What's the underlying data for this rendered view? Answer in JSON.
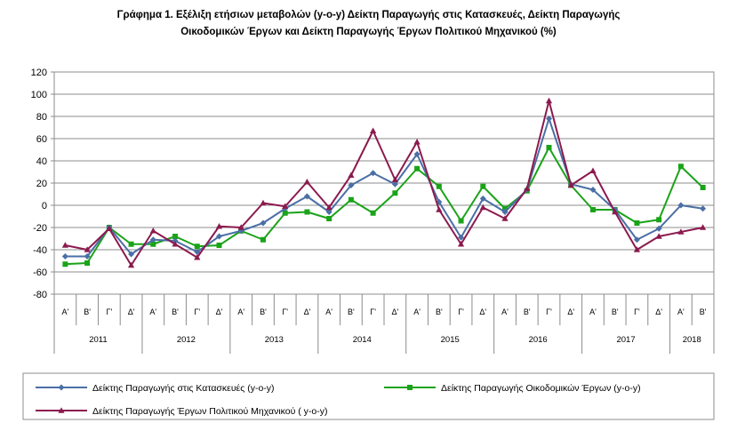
{
  "chart_data": {
    "type": "line",
    "title": "Γράφημα 1. Εξέλιξη ετήσιων μεταβολών (y-o-y) Δείκτη Παραγωγής στις Κατασκευές, Δείκτη Παραγωγής",
    "subtitle": "Οικοδομικών Έργων και  Δείκτη Παραγωγής Έργων Πολιτικού Μηχανικού (%)",
    "xlabel": "",
    "ylabel": "",
    "ylim": [
      -80,
      120
    ],
    "yticks": [
      -80,
      -60,
      -40,
      -20,
      0,
      20,
      40,
      60,
      80,
      100,
      120
    ],
    "grid": true,
    "legend_position": "bottom",
    "categories": [
      "Α'",
      "Β'",
      "Γ'",
      "Δ'",
      "Α'",
      "Β'",
      "Γ'",
      "Δ'",
      "Α'",
      "Β'",
      "Γ'",
      "Δ'",
      "Α'",
      "Β'",
      "Γ'",
      "Δ'",
      "Α'",
      "Β'",
      "Γ'",
      "Δ'",
      "Α'",
      "Β'",
      "Γ'",
      "Δ'",
      "Α'",
      "Β'",
      "Γ'",
      "Δ'",
      "Α'",
      "Β'"
    ],
    "years": [
      {
        "label": "2011",
        "quarters": 4
      },
      {
        "label": "2012",
        "quarters": 4
      },
      {
        "label": "2013",
        "quarters": 4
      },
      {
        "label": "2014",
        "quarters": 4
      },
      {
        "label": "2015",
        "quarters": 4
      },
      {
        "label": "2016",
        "quarters": 4
      },
      {
        "label": "2017",
        "quarters": 4
      },
      {
        "label": "2018",
        "quarters": 2
      }
    ],
    "series": [
      {
        "name": "Δείκτης Παραγωγής στις Κατασκευές (y-o-y)",
        "color": "#4a6fa5",
        "marker": "diamond",
        "values": [
          -46,
          -46,
          -20,
          -44,
          -31,
          -32,
          -42,
          -28,
          -23,
          -16,
          -3,
          8,
          -6,
          18,
          29,
          19,
          46,
          3,
          -29,
          6,
          -6,
          14,
          78,
          19,
          14,
          -4,
          -31,
          -21,
          0,
          -3
        ]
      },
      {
        "name": "Δείκτης Παραγωγής Οικοδομικών Έργων (y-o-y)",
        "color": "#1aa318",
        "marker": "square",
        "values": [
          -53,
          -52,
          -20,
          -35,
          -35,
          -28,
          -37,
          -36,
          -23,
          -31,
          -7,
          -6,
          -12,
          5,
          -7,
          11,
          33,
          17,
          -14,
          17,
          -3,
          13,
          52,
          18,
          -4,
          -4,
          -16,
          -13,
          35,
          16
        ]
      },
      {
        "name": "Δείκτης Παραγωγής Έργων Πολιτικού Μηχανικού ( y-o-y)",
        "color": "#8b1a4e",
        "marker": "triangle",
        "values": [
          -36,
          -40,
          -21,
          -54,
          -23,
          -35,
          -47,
          -19,
          -20,
          2,
          -1,
          21,
          -2,
          27,
          67,
          23,
          57,
          -4,
          -35,
          -2,
          -12,
          15,
          94,
          18,
          31,
          -6,
          -40,
          -28,
          -24,
          -20
        ]
      }
    ]
  }
}
